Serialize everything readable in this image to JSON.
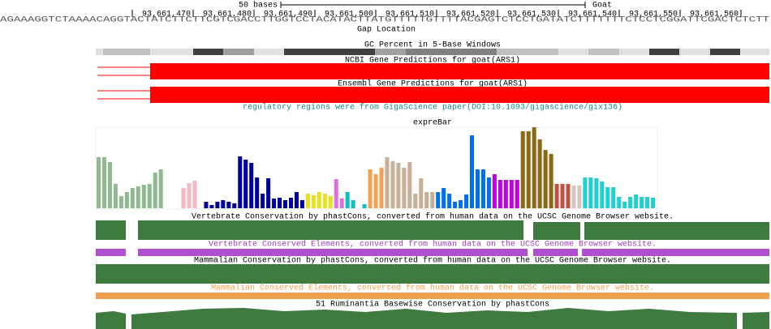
{
  "ruler": {
    "scale_label": "50 bases",
    "assembly": "Goat",
    "positions": [
      "93,661,470",
      "93,661,480",
      "93,661,490",
      "93,661,500",
      "93,661,510",
      "93,661,520",
      "93,661,530",
      "93,661,540",
      "93,661,550",
      "93,661,560"
    ]
  },
  "sequence": "AGAAAGGTCTAAAACAGGTACTATCTTCTTCGTCGACCTTGGTCCTACATACTTATGTTTTTGTTTTACGAGTCTCCTGATATCTTTTTTTCTCCTCGGATTCGACTCTCTT",
  "tracks": {
    "gap": "Gap Location",
    "gc": "GC Percent in 5-Base Windows",
    "ncbi": "NCBI Gene Predictions for goat(ARS1)",
    "ensembl": "Ensembl Gene Predictions for goat(ARS1)",
    "regulatory": "regulatory regions were from GigaScience paper(DOI:10.1093/gigascience/gix136)",
    "expre_bar": {
      "title": "expreBar",
      "groups": [
        {
          "color": "#8fb98f",
          "values": [
            63,
            63,
            57,
            30,
            15,
            20,
            25,
            27,
            29,
            30,
            44,
            48,
            0,
            0
          ]
        },
        {
          "color": "#f7b6c2",
          "values": [
            0,
            25,
            31,
            34,
            0
          ]
        },
        {
          "color": "#0000a0",
          "values": [
            8,
            4,
            8,
            10,
            8,
            6,
            64,
            60,
            56,
            38,
            18,
            37,
            12,
            13,
            10,
            13,
            20,
            10
          ]
        },
        {
          "color": "#e8e020",
          "values": [
            18,
            16,
            20,
            18,
            15
          ]
        },
        {
          "color": "#e070e0",
          "values": [
            36,
            12
          ]
        },
        {
          "color": "#10c0c0",
          "values": [
            20,
            10,
            0,
            5
          ]
        },
        {
          "color": "#f0a050",
          "values": [
            48,
            42,
            50
          ]
        },
        {
          "color": "#c8b098",
          "values": [
            63,
            58,
            56,
            50,
            57,
            18,
            37,
            20,
            20
          ]
        },
        {
          "color": "#0070f0",
          "values": [
            20,
            25,
            18,
            8,
            10,
            17,
            90,
            48,
            48,
            38
          ]
        },
        {
          "color": "#c000e0",
          "values": [
            42,
            35,
            35,
            35,
            35
          ]
        },
        {
          "color": "#8b6914",
          "values": [
            95,
            95,
            100,
            85,
            72,
            67
          ]
        },
        {
          "color": "#c05040",
          "values": [
            30,
            30,
            30
          ]
        },
        {
          "color": "#d0c8b8",
          "values": [
            28,
            28
          ]
        },
        {
          "color": "#20d0d0",
          "values": [
            38,
            38,
            37,
            33,
            26,
            26,
            14,
            8,
            14,
            17,
            14,
            14,
            13
          ]
        }
      ]
    },
    "vert_cons": "Vertebrate Conservation by phastCons, converted from human data on the UCSC Genome Browser website.",
    "vert_elements": "Vertebrate Conserved Elements, converted from human data on the UCSC Genome Browser website.",
    "mamm_cons": "Mammalian Conservation by phastCons, converted from human data on the UCSC Genome Browser website.",
    "mamm_elements": "Mammalian Conserved Elements, converted from human data on the UCSC Genome Browser website.",
    "rumin": "51 Ruminantia Basewise Conservation by phastCons"
  }
}
